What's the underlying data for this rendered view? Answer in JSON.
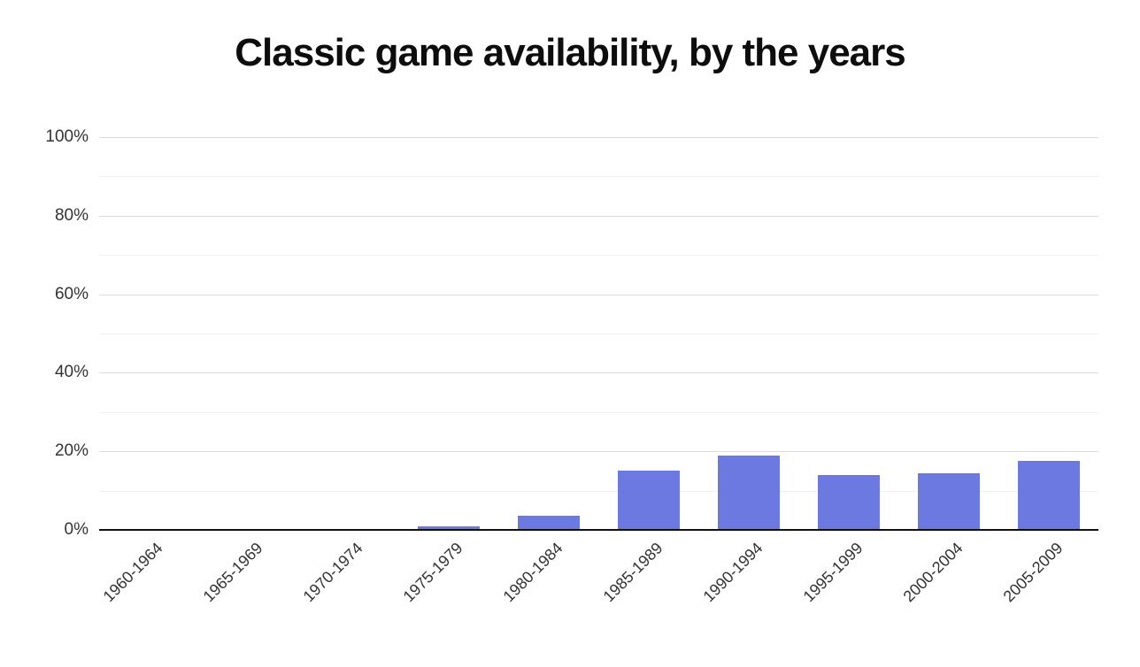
{
  "page": {
    "background": "#ffffff"
  },
  "chart_data": {
    "type": "bar",
    "title": "Classic game availability, by the years",
    "categories": [
      "1960-1964",
      "1965-1969",
      "1970-1974",
      "1975-1979",
      "1980-1984",
      "1985-1989",
      "1990-1994",
      "1995-1999",
      "2000-2004",
      "2005-2009"
    ],
    "values": [
      0,
      0,
      0,
      1,
      3.5,
      15,
      19,
      14,
      14.5,
      17.5
    ],
    "value_unit": "%",
    "xlabel": "",
    "ylabel": "",
    "ylim": [
      0,
      100
    ],
    "y_ticks": [
      0,
      20,
      40,
      60,
      80,
      100
    ],
    "y_minor_step": 10,
    "y_major_step": 20,
    "y_tick_suffix": "%",
    "grid": true,
    "legend_position": "none",
    "x_label_rotation_deg": -45,
    "colors": {
      "bar": "#6b79e1",
      "axis": "#111111",
      "grid_major": "#dbdbdb",
      "grid_minor": "#f0f0f0",
      "title_text": "#0d0d0d",
      "tick_text": "#333333",
      "background": "#ffffff"
    }
  }
}
